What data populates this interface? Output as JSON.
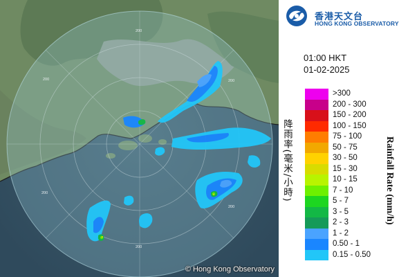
{
  "map": {
    "credit": "© Hong Kong Observatory",
    "range_rings": [
      "200",
      "200",
      "200",
      "200",
      "200",
      "200"
    ]
  },
  "logo": {
    "chinese": "香港天文台",
    "english": "HONG KONG OBSERVATORY"
  },
  "time": "01:00 HKT",
  "date": "01-02-2025",
  "legend": {
    "items": [
      {
        "label": ">300",
        "color": "#ee00ee"
      },
      {
        "label": "200 - 300",
        "color": "#c8008a"
      },
      {
        "label": "150 - 200",
        "color": "#d8101a"
      },
      {
        "label": "100 - 150",
        "color": "#ff2a00"
      },
      {
        "label": "75 - 100",
        "color": "#ff7d00"
      },
      {
        "label": "50 - 75",
        "color": "#f2a800"
      },
      {
        "label": "30 - 50",
        "color": "#ffd200"
      },
      {
        "label": "15 - 30",
        "color": "#d8dc00"
      },
      {
        "label": "10 - 15",
        "color": "#b8f400"
      },
      {
        "label": "7 - 10",
        "color": "#6ef000"
      },
      {
        "label": "5 - 7",
        "color": "#1dd620"
      },
      {
        "label": "3 - 5",
        "color": "#13b845"
      },
      {
        "label": "2 - 3",
        "color": "#159a58"
      },
      {
        "label": "1 - 2",
        "color": "#4aa3ff"
      },
      {
        "label": "0.50 - 1",
        "color": "#1a86ff"
      },
      {
        "label": "0.15 - 0.50",
        "color": "#22c6f8"
      }
    ],
    "unit_chinese": "降雨率(毫米/小時)",
    "unit_english": "Rainfall Rate (mm/h)"
  }
}
